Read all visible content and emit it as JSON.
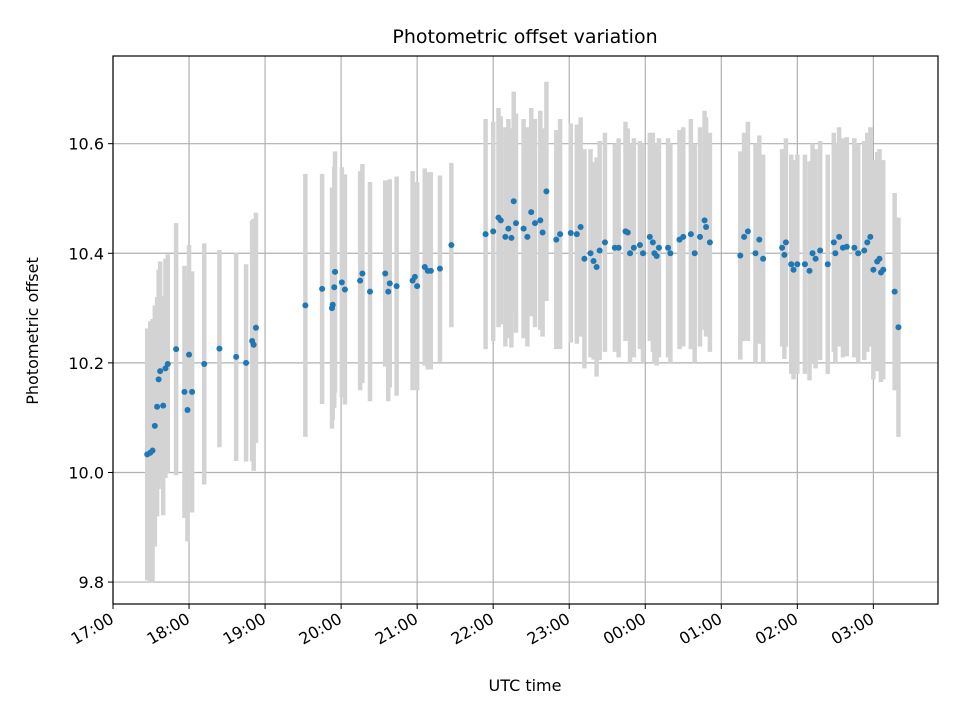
{
  "chart_data": {
    "type": "scatter",
    "title": "Photometric offset variation",
    "xlabel": "UTC time",
    "ylabel": "Photometric offset",
    "x_unit": "hours UTC from 17:00 (values past 24 roll into the next day)",
    "xlim": [
      17.0,
      27.85
    ],
    "ylim": [
      9.76,
      10.76
    ],
    "grid": true,
    "x_ticks": [
      {
        "value": 17,
        "label": "17:00"
      },
      {
        "value": 18,
        "label": "18:00"
      },
      {
        "value": 19,
        "label": "19:00"
      },
      {
        "value": 20,
        "label": "20:00"
      },
      {
        "value": 21,
        "label": "21:00"
      },
      {
        "value": 22,
        "label": "22:00"
      },
      {
        "value": 23,
        "label": "23:00"
      },
      {
        "value": 24,
        "label": "00:00"
      },
      {
        "value": 25,
        "label": "01:00"
      },
      {
        "value": 26,
        "label": "02:00"
      },
      {
        "value": 27,
        "label": "03:00"
      }
    ],
    "y_ticks": [
      {
        "value": 9.8,
        "label": "9.8"
      },
      {
        "value": 10.0,
        "label": "10.0"
      },
      {
        "value": 10.2,
        "label": "10.2"
      },
      {
        "value": 10.4,
        "label": "10.4"
      },
      {
        "value": 10.6,
        "label": "10.6"
      }
    ],
    "colors": {
      "points": "#1f77b4",
      "errorbars": "#d3d3d3",
      "grid": "#b0b0b0",
      "axes": "#000000"
    },
    "series": [
      {
        "points": [
          [
            17.45,
            10.033,
            0.23
          ],
          [
            17.49,
            10.036,
            0.24
          ],
          [
            17.52,
            10.04,
            0.24
          ],
          [
            17.55,
            10.085,
            0.22
          ],
          [
            17.58,
            10.12,
            0.2
          ],
          [
            17.6,
            10.17,
            0.2
          ],
          [
            17.62,
            10.185,
            0.2
          ],
          [
            17.66,
            10.122,
            0.2
          ],
          [
            17.69,
            10.19,
            0.2
          ],
          [
            17.72,
            10.198,
            0.2
          ],
          [
            17.83,
            10.225,
            0.23
          ],
          [
            17.94,
            10.147,
            0.23
          ],
          [
            17.98,
            10.114,
            0.24
          ],
          [
            18.0,
            10.215,
            0.2
          ],
          [
            18.04,
            10.147,
            0.22
          ],
          [
            18.2,
            10.198,
            0.22
          ],
          [
            18.4,
            10.226,
            0.18
          ],
          [
            18.62,
            10.211,
            0.19
          ],
          [
            18.75,
            10.2,
            0.18
          ],
          [
            18.83,
            10.24,
            0.22
          ],
          [
            18.85,
            10.233,
            0.23
          ],
          [
            18.88,
            10.264,
            0.21
          ],
          [
            19.53,
            10.305,
            0.24
          ],
          [
            19.75,
            10.335,
            0.21
          ],
          [
            19.88,
            10.3,
            0.22
          ],
          [
            19.89,
            10.306,
            0.21
          ],
          [
            19.91,
            10.338,
            0.22
          ],
          [
            19.92,
            10.366,
            0.22
          ],
          [
            20.01,
            10.347,
            0.21
          ],
          [
            20.05,
            10.334,
            0.21
          ],
          [
            20.25,
            10.35,
            0.2
          ],
          [
            20.28,
            10.363,
            0.2
          ],
          [
            20.38,
            10.33,
            0.2
          ],
          [
            20.58,
            10.363,
            0.17
          ],
          [
            20.62,
            10.33,
            0.2
          ],
          [
            20.64,
            10.345,
            0.19
          ],
          [
            20.73,
            10.34,
            0.2
          ],
          [
            20.94,
            10.35,
            0.2
          ],
          [
            20.97,
            10.357,
            0.17
          ],
          [
            21.0,
            10.34,
            0.19
          ],
          [
            21.1,
            10.375,
            0.18
          ],
          [
            21.14,
            10.368,
            0.18
          ],
          [
            21.18,
            10.368,
            0.18
          ],
          [
            21.3,
            10.372,
            0.17
          ],
          [
            21.45,
            10.415,
            0.15
          ],
          [
            21.9,
            10.435,
            0.21
          ],
          [
            22.0,
            10.44,
            0.2
          ],
          [
            22.07,
            10.465,
            0.2
          ],
          [
            22.1,
            10.46,
            0.19
          ],
          [
            22.16,
            10.43,
            0.2
          ],
          [
            22.2,
            10.445,
            0.2
          ],
          [
            22.24,
            10.428,
            0.2
          ],
          [
            22.27,
            10.495,
            0.2
          ],
          [
            22.3,
            10.455,
            0.2
          ],
          [
            22.4,
            10.445,
            0.2
          ],
          [
            22.45,
            10.43,
            0.2
          ],
          [
            22.5,
            10.475,
            0.19
          ],
          [
            22.55,
            10.455,
            0.19
          ],
          [
            22.62,
            10.46,
            0.2
          ],
          [
            22.65,
            10.438,
            0.19
          ],
          [
            22.7,
            10.513,
            0.2
          ],
          [
            22.83,
            10.425,
            0.2
          ],
          [
            22.88,
            10.435,
            0.21
          ],
          [
            23.02,
            10.437,
            0.2
          ],
          [
            23.1,
            10.435,
            0.2
          ],
          [
            23.15,
            10.448,
            0.2
          ],
          [
            23.2,
            10.39,
            0.2
          ],
          [
            23.28,
            10.4,
            0.19
          ],
          [
            23.32,
            10.386,
            0.18
          ],
          [
            23.36,
            10.375,
            0.2
          ],
          [
            23.4,
            10.405,
            0.2
          ],
          [
            23.47,
            10.42,
            0.2
          ],
          [
            23.6,
            10.41,
            0.19
          ],
          [
            23.65,
            10.41,
            0.2
          ],
          [
            23.74,
            10.44,
            0.2
          ],
          [
            23.77,
            10.438,
            0.19
          ],
          [
            23.8,
            10.4,
            0.2
          ],
          [
            23.85,
            10.41,
            0.2
          ],
          [
            23.93,
            10.415,
            0.19
          ],
          [
            23.97,
            10.4,
            0.2
          ],
          [
            24.06,
            10.43,
            0.19
          ],
          [
            24.1,
            10.42,
            0.2
          ],
          [
            24.12,
            10.4,
            0.2
          ],
          [
            24.15,
            10.395,
            0.2
          ],
          [
            24.18,
            10.41,
            0.2
          ],
          [
            24.3,
            10.41,
            0.2
          ],
          [
            24.33,
            10.4,
            0.2
          ],
          [
            24.45,
            10.425,
            0.2
          ],
          [
            24.5,
            10.43,
            0.2
          ],
          [
            24.6,
            10.435,
            0.21
          ],
          [
            24.65,
            10.4,
            0.2
          ],
          [
            24.72,
            10.43,
            0.2
          ],
          [
            24.78,
            10.46,
            0.2
          ],
          [
            24.8,
            10.448,
            0.2
          ],
          [
            24.85,
            10.42,
            0.2
          ],
          [
            25.25,
            10.396,
            0.19
          ],
          [
            25.3,
            10.43,
            0.19
          ],
          [
            25.35,
            10.44,
            0.2
          ],
          [
            25.45,
            10.4,
            0.2
          ],
          [
            25.5,
            10.425,
            0.19
          ],
          [
            25.55,
            10.39,
            0.19
          ],
          [
            25.8,
            10.41,
            0.18
          ],
          [
            25.83,
            10.397,
            0.19
          ],
          [
            25.85,
            10.42,
            0.19
          ],
          [
            25.92,
            10.38,
            0.2
          ],
          [
            25.95,
            10.37,
            0.2
          ],
          [
            26.0,
            10.38,
            0.2
          ],
          [
            26.1,
            10.38,
            0.2
          ],
          [
            26.16,
            10.368,
            0.2
          ],
          [
            26.2,
            10.4,
            0.2
          ],
          [
            26.24,
            10.39,
            0.2
          ],
          [
            26.3,
            10.405,
            0.2
          ],
          [
            26.4,
            10.38,
            0.2
          ],
          [
            26.48,
            10.42,
            0.2
          ],
          [
            26.5,
            10.4,
            0.2
          ],
          [
            26.55,
            10.43,
            0.2
          ],
          [
            26.6,
            10.41,
            0.2
          ],
          [
            26.65,
            10.412,
            0.2
          ],
          [
            26.75,
            10.41,
            0.2
          ],
          [
            26.8,
            10.4,
            0.2
          ],
          [
            26.88,
            10.405,
            0.2
          ],
          [
            26.92,
            10.42,
            0.2
          ],
          [
            26.96,
            10.43,
            0.2
          ],
          [
            27.0,
            10.37,
            0.2
          ],
          [
            27.05,
            10.385,
            0.2
          ],
          [
            27.08,
            10.39,
            0.2
          ],
          [
            27.1,
            10.365,
            0.2
          ],
          [
            27.13,
            10.37,
            0.2
          ],
          [
            27.28,
            10.33,
            0.18
          ],
          [
            27.33,
            10.265,
            0.2
          ]
        ]
      }
    ]
  }
}
